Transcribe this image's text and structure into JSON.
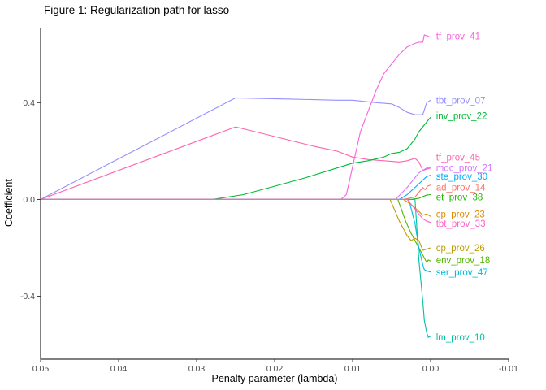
{
  "figure": {
    "title": "Figure 1: Regularization path for lasso"
  },
  "chart_data": {
    "type": "line",
    "title": "Figure 1: Regularization path for lasso",
    "xlabel": "Penalty parameter (lambda)",
    "ylabel": "Coefficient",
    "xlim": [
      0.05,
      -0.01
    ],
    "ylim": [
      -0.66,
      0.71
    ],
    "x_axis_reversed": true,
    "grid": false,
    "legend_position": "inline-right-labels",
    "x_ticks": [
      0.05,
      0.04,
      0.03,
      0.02,
      0.01,
      0,
      -0.01
    ],
    "x_tick_labels": [
      "0.05",
      "0.04",
      "0.03",
      "0.02",
      "0.01",
      "0.00",
      "-0.01"
    ],
    "y_ticks": [
      -0.4,
      0,
      0.4
    ],
    "y_tick_labels": [
      "-0.4",
      "0.0",
      "0.4"
    ],
    "label_x": -0.0007,
    "series": [
      {
        "name": "tbt_prov_07",
        "color": "#9590FF",
        "label_y": 0.41,
        "points": [
          [
            0.05,
            0
          ],
          [
            0.025,
            0.42
          ],
          [
            0.018,
            0.415
          ],
          [
            0.012,
            0.41
          ],
          [
            0.01,
            0.41
          ],
          [
            0.007,
            0.4
          ],
          [
            0.005,
            0.395
          ],
          [
            0.004,
            0.38
          ],
          [
            0.003,
            0.36
          ],
          [
            0.002,
            0.35
          ],
          [
            0.001,
            0.35
          ],
          [
            0.0005,
            0.4
          ],
          [
            0,
            0.41
          ]
        ]
      },
      {
        "name": "tf_prov_45",
        "color": "#FF65AC",
        "label_y": 0.175,
        "points": [
          [
            0.05,
            0
          ],
          [
            0.025,
            0.3
          ],
          [
            0.02,
            0.26
          ],
          [
            0.015,
            0.22
          ],
          [
            0.012,
            0.2
          ],
          [
            0.01,
            0.175
          ],
          [
            0.008,
            0.165
          ],
          [
            0.006,
            0.16
          ],
          [
            0.004,
            0.155
          ],
          [
            0.003,
            0.16
          ],
          [
            0.002,
            0.17
          ],
          [
            0.0015,
            0.155
          ],
          [
            0.001,
            0.12
          ],
          [
            0.0005,
            0.125
          ],
          [
            0,
            0.13
          ]
        ]
      },
      {
        "name": "inv_prov_22",
        "color": "#00BA38",
        "label_y": 0.345,
        "points": [
          [
            0.05,
            0
          ],
          [
            0.028,
            0
          ],
          [
            0.024,
            0.02
          ],
          [
            0.02,
            0.055
          ],
          [
            0.016,
            0.09
          ],
          [
            0.012,
            0.13
          ],
          [
            0.01,
            0.15
          ],
          [
            0.008,
            0.16
          ],
          [
            0.006,
            0.175
          ],
          [
            0.005,
            0.19
          ],
          [
            0.004,
            0.195
          ],
          [
            0.003,
            0.21
          ],
          [
            0.002,
            0.25
          ],
          [
            0.0015,
            0.28
          ],
          [
            0.001,
            0.3
          ],
          [
            0.0005,
            0.32
          ],
          [
            0,
            0.34
          ]
        ]
      },
      {
        "name": "et_prov_38",
        "color": "#24B700",
        "label_y": 0.01,
        "points": [
          [
            0.05,
            0
          ],
          [
            0.0025,
            0
          ],
          [
            0.0015,
            0.005
          ],
          [
            0.001,
            0.012
          ],
          [
            0.0005,
            0.018
          ],
          [
            0,
            0.02
          ]
        ]
      },
      {
        "name": "cp_prov_26",
        "color": "#BE9C00",
        "label_y": -0.2,
        "points": [
          [
            0.05,
            0
          ],
          [
            0.0052,
            0
          ],
          [
            0.004,
            -0.09
          ],
          [
            0.003,
            -0.15
          ],
          [
            0.0025,
            -0.17
          ],
          [
            0.002,
            -0.16
          ],
          [
            0.0015,
            -0.17
          ],
          [
            0.001,
            -0.21
          ],
          [
            0.0005,
            -0.205
          ],
          [
            0,
            -0.2
          ]
        ]
      },
      {
        "name": "env_prov_18",
        "color": "#53B400",
        "label_y": -0.25,
        "points": [
          [
            0.05,
            0
          ],
          [
            0.0042,
            0
          ],
          [
            0.0032,
            -0.09
          ],
          [
            0.0025,
            -0.14
          ],
          [
            0.002,
            -0.17
          ],
          [
            0.0015,
            -0.2
          ],
          [
            0.001,
            -0.23
          ],
          [
            0.0005,
            -0.26
          ],
          [
            0.0003,
            -0.25
          ],
          [
            0,
            -0.255
          ]
        ]
      },
      {
        "name": "ser_prov_47",
        "color": "#00BBDA",
        "label_y": -0.3,
        "points": [
          [
            0.05,
            0
          ],
          [
            0.0028,
            0
          ],
          [
            0.002,
            -0.1
          ],
          [
            0.0015,
            -0.2
          ],
          [
            0.001,
            -0.27
          ],
          [
            0.0008,
            -0.29
          ],
          [
            0.0005,
            -0.295
          ],
          [
            0,
            -0.3
          ]
        ]
      },
      {
        "name": "lm_prov_10",
        "color": "#00C1A3",
        "label_y": -0.57,
        "points": [
          [
            0.05,
            0
          ],
          [
            0.002,
            0
          ],
          [
            0.0015,
            -0.25
          ],
          [
            0.001,
            -0.42
          ],
          [
            0.0008,
            -0.5
          ],
          [
            0.0005,
            -0.55
          ],
          [
            0.0003,
            -0.57
          ],
          [
            0,
            -0.565
          ]
        ]
      },
      {
        "name": "cp_prov_23",
        "color": "#DE8C00",
        "label_y": -0.06,
        "points": [
          [
            0.05,
            0
          ],
          [
            0.0035,
            0
          ],
          [
            0.0025,
            -0.02
          ],
          [
            0.0015,
            -0.05
          ],
          [
            0.001,
            -0.065
          ],
          [
            0.0005,
            -0.06
          ],
          [
            0,
            -0.07
          ]
        ]
      },
      {
        "name": "ste_prov_30",
        "color": "#00ACFC",
        "label_y": 0.095,
        "points": [
          [
            0.05,
            0
          ],
          [
            0.004,
            0
          ],
          [
            0.003,
            0.02
          ],
          [
            0.002,
            0.05
          ],
          [
            0.001,
            0.08
          ],
          [
            0.0005,
            0.095
          ],
          [
            0,
            0.1
          ]
        ]
      },
      {
        "name": "ad_prov_14",
        "color": "#F8766D",
        "label_y": 0.05,
        "points": [
          [
            0.05,
            0
          ],
          [
            0.0035,
            0
          ],
          [
            0.002,
            0.01
          ],
          [
            0.0015,
            0.03
          ],
          [
            0.001,
            0.05
          ],
          [
            0.0007,
            0.04
          ],
          [
            0.0004,
            0.055
          ],
          [
            0,
            0.06
          ]
        ]
      },
      {
        "name": "moc_prov_21",
        "color": "#D575FE",
        "label_y": 0.13,
        "points": [
          [
            0.05,
            0
          ],
          [
            0.0045,
            0
          ],
          [
            0.003,
            0.05
          ],
          [
            0.002,
            0.09
          ],
          [
            0.0015,
            0.11
          ],
          [
            0.001,
            0.12
          ],
          [
            0.0005,
            0.13
          ],
          [
            0,
            0.13
          ]
        ]
      },
      {
        "name": "tbt_prov_33",
        "color": "#FF61C9",
        "label_y": -0.1,
        "points": [
          [
            0.05,
            0
          ],
          [
            0.003,
            0
          ],
          [
            0.002,
            -0.04
          ],
          [
            0.0015,
            -0.06
          ],
          [
            0.001,
            -0.08
          ],
          [
            0.0005,
            -0.09
          ],
          [
            0,
            -0.095
          ]
        ]
      },
      {
        "name": "tf_prov_41",
        "color": "#F962DD",
        "label_y": 0.675,
        "points": [
          [
            0.05,
            0
          ],
          [
            0.0115,
            0
          ],
          [
            0.0108,
            0.02
          ],
          [
            0.009,
            0.28
          ],
          [
            0.007,
            0.45
          ],
          [
            0.006,
            0.52
          ],
          [
            0.005,
            0.56
          ],
          [
            0.004,
            0.6
          ],
          [
            0.003,
            0.63
          ],
          [
            0.002,
            0.645
          ],
          [
            0.0015,
            0.65
          ],
          [
            0.001,
            0.65
          ],
          [
            0.0008,
            0.68
          ],
          [
            0.0004,
            0.675
          ],
          [
            0,
            0.67
          ]
        ]
      }
    ]
  }
}
